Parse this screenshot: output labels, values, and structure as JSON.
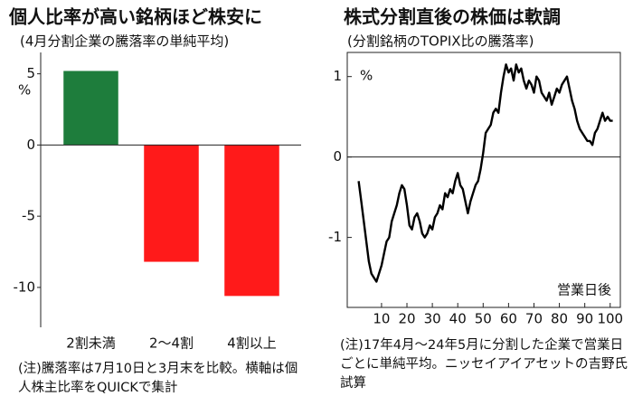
{
  "chart_data": [
    {
      "type": "bar",
      "title": "個人比率が高い銘柄ほど株安に",
      "subtitle": "(4月分割企業の騰落率の単純平均)",
      "y_unit": "%",
      "categories": [
        "2割未満",
        "2～4割",
        "4割以上"
      ],
      "values": [
        5.2,
        -8.2,
        -10.6
      ],
      "colors": [
        "#1e7d3c",
        "#ff1a1a",
        "#ff1a1a"
      ],
      "ylim": [
        -12.8,
        6.5
      ],
      "yticks": [
        5,
        0,
        -5,
        -10
      ],
      "note": "(注)騰落率は7月10日と3月末を比較。横軸は個人株主比率をQUICKで集計"
    },
    {
      "type": "line",
      "title": "株式分割直後の株価は軟調",
      "subtitle": "(分割銘柄のTOPIX比の騰落率)",
      "y_unit": "%",
      "x_label": "営業日後",
      "x": [
        1,
        2,
        3,
        4,
        5,
        6,
        7,
        8,
        9,
        10,
        11,
        12,
        13,
        14,
        15,
        16,
        17,
        18,
        19,
        20,
        21,
        22,
        23,
        24,
        25,
        26,
        27,
        28,
        29,
        30,
        31,
        32,
        33,
        34,
        35,
        36,
        37,
        38,
        39,
        40,
        41,
        42,
        43,
        44,
        45,
        46,
        47,
        48,
        49,
        50,
        51,
        52,
        53,
        54,
        55,
        56,
        57,
        58,
        59,
        60,
        61,
        62,
        63,
        64,
        65,
        66,
        67,
        68,
        69,
        70,
        71,
        72,
        73,
        74,
        75,
        76,
        77,
        78,
        79,
        80,
        81,
        82,
        83,
        84,
        85,
        86,
        87,
        88,
        89,
        90,
        91,
        92,
        93,
        94,
        95,
        96,
        97,
        98,
        99,
        100,
        101
      ],
      "series": [
        {
          "name": "騰落率",
          "color": "#000000",
          "values": [
            -0.3,
            -0.55,
            -0.8,
            -1.05,
            -1.3,
            -1.45,
            -1.5,
            -1.55,
            -1.45,
            -1.35,
            -1.2,
            -1.05,
            -1.0,
            -0.8,
            -0.7,
            -0.6,
            -0.45,
            -0.35,
            -0.4,
            -0.6,
            -0.85,
            -0.9,
            -0.75,
            -0.7,
            -0.8,
            -0.95,
            -1.0,
            -0.95,
            -0.85,
            -0.9,
            -0.75,
            -0.7,
            -0.6,
            -0.65,
            -0.45,
            -0.5,
            -0.4,
            -0.45,
            -0.3,
            -0.2,
            -0.35,
            -0.4,
            -0.55,
            -0.7,
            -0.55,
            -0.45,
            -0.35,
            -0.3,
            -0.15,
            0.05,
            0.3,
            0.35,
            0.4,
            0.55,
            0.6,
            0.55,
            0.8,
            1.0,
            1.15,
            1.05,
            1.1,
            0.95,
            1.15,
            1.05,
            1.1,
            0.95,
            0.85,
            0.95,
            0.9,
            0.8,
            1.0,
            0.95,
            0.8,
            0.75,
            0.7,
            0.8,
            0.65,
            0.75,
            0.85,
            0.8,
            0.9,
            0.95,
            1.0,
            0.85,
            0.7,
            0.6,
            0.45,
            0.35,
            0.3,
            0.25,
            0.2,
            0.2,
            0.15,
            0.3,
            0.35,
            0.45,
            0.55,
            0.45,
            0.5,
            0.45,
            0.45
          ]
        }
      ],
      "xlim": [
        -3.5,
        104
      ],
      "xticks": [
        10,
        20,
        30,
        40,
        50,
        60,
        70,
        80,
        90,
        100
      ],
      "ylim": [
        -1.87,
        1.3
      ],
      "yticks": [
        1,
        0,
        -1
      ],
      "note": "(注)17年4月～24年5月に分割した企業で営業日ごとに単純平均。ニッセイアイアセットの吉野氏試算"
    }
  ]
}
